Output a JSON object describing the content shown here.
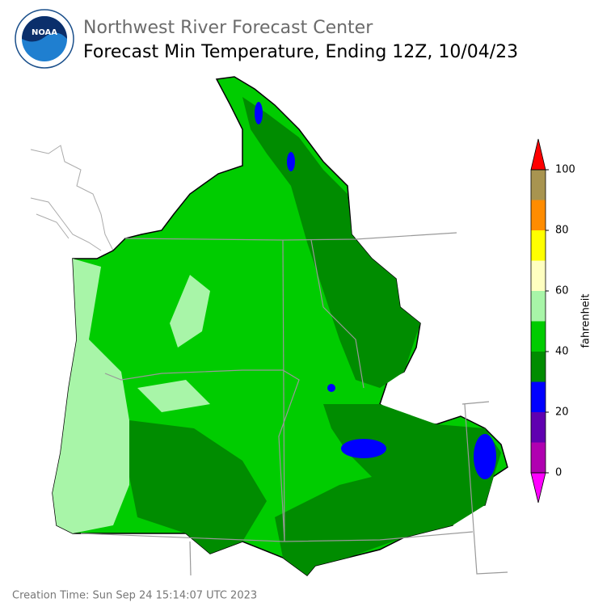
{
  "header": {
    "title": "Northwest River Forecast Center",
    "subtitle": "Forecast Min Temperature, Ending 12Z, 10/04/23"
  },
  "colorbar": {
    "label": "fahrenheit",
    "ticks": [
      0,
      20,
      40,
      60,
      80,
      100
    ],
    "bins": [
      0,
      10,
      20,
      30,
      40,
      50,
      60,
      70,
      80,
      90,
      100
    ],
    "colors": [
      "#b000b0",
      "#6000b0",
      "#0000ff",
      "#008c00",
      "#00cc00",
      "#a8f5a8",
      "#ffffc0",
      "#ffff00",
      "#ff8c00",
      "#a89450"
    ],
    "extend_min_color": "#ff00ff",
    "extend_max_color": "#ff0000"
  },
  "footer": {
    "creation_time": "Creation Time: Sun Sep 24 15:14:07 UTC 2023"
  }
}
